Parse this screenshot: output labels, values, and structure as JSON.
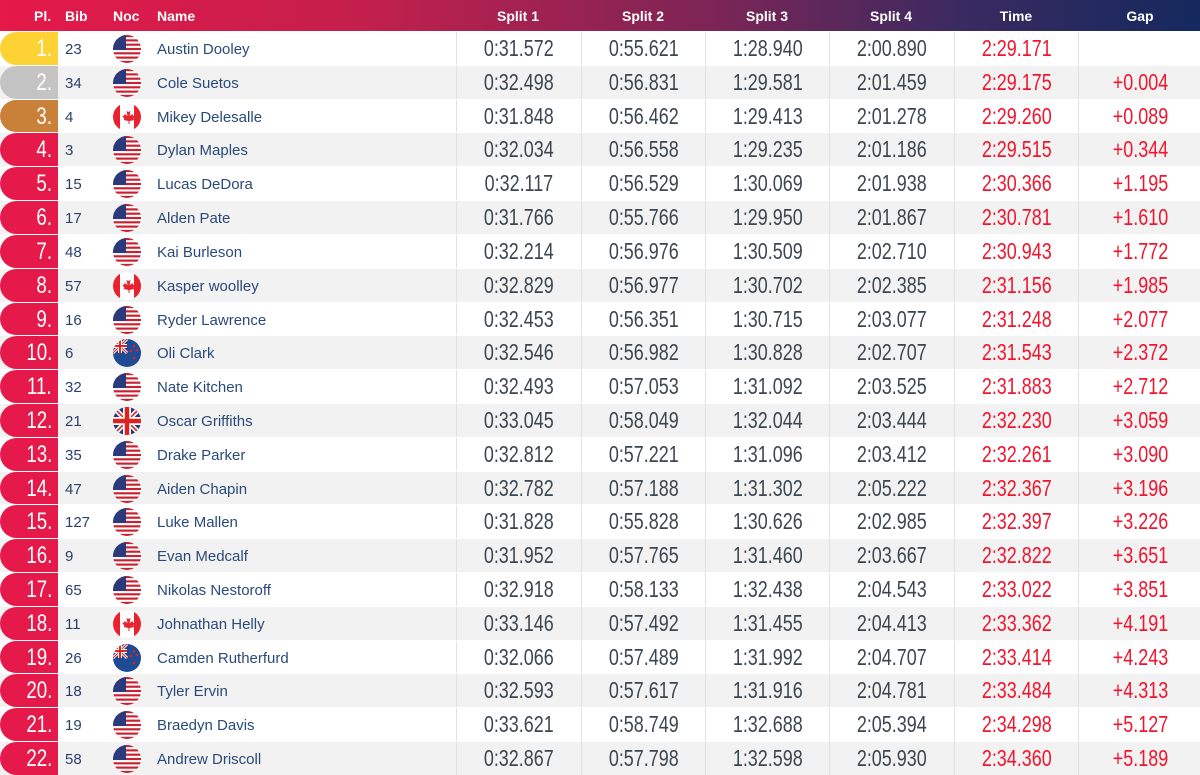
{
  "header": {
    "place": "Pl.",
    "bib": "Bib",
    "noc": "Noc",
    "name": "Name",
    "split1": "Split 1",
    "split2": "Split 2",
    "split3": "Split 3",
    "split4": "Split 4",
    "time": "Time",
    "gap": "Gap"
  },
  "colors": {
    "gold": "#fcd234",
    "silver": "#c4c4c4",
    "bronze": "#c98039",
    "place": "#e5194a",
    "time": "#f0142d"
  },
  "rows": [
    {
      "place": "1.",
      "bib": "23",
      "noc": "USA",
      "name": "Austin Dooley",
      "s1": "0:31.572",
      "s2": "0:55.621",
      "s3": "1:28.940",
      "s4": "2:00.890",
      "time": "2:29.171",
      "gap": ""
    },
    {
      "place": "2.",
      "bib": "34",
      "noc": "USA",
      "name": "Cole Suetos",
      "s1": "0:32.498",
      "s2": "0:56.831",
      "s3": "1:29.581",
      "s4": "2:01.459",
      "time": "2:29.175",
      "gap": "+0.004"
    },
    {
      "place": "3.",
      "bib": "4",
      "noc": "CAN",
      "name": "Mikey Delesalle",
      "s1": "0:31.848",
      "s2": "0:56.462",
      "s3": "1:29.413",
      "s4": "2:01.278",
      "time": "2:29.260",
      "gap": "+0.089"
    },
    {
      "place": "4.",
      "bib": "3",
      "noc": "USA",
      "name": "Dylan Maples",
      "s1": "0:32.034",
      "s2": "0:56.558",
      "s3": "1:29.235",
      "s4": "2:01.186",
      "time": "2:29.515",
      "gap": "+0.344"
    },
    {
      "place": "5.",
      "bib": "15",
      "noc": "USA",
      "name": "Lucas DeDora",
      "s1": "0:32.117",
      "s2": "0:56.529",
      "s3": "1:30.069",
      "s4": "2:01.938",
      "time": "2:30.366",
      "gap": "+1.195"
    },
    {
      "place": "6.",
      "bib": "17",
      "noc": "USA",
      "name": "Alden Pate",
      "s1": "0:31.766",
      "s2": "0:55.766",
      "s3": "1:29.950",
      "s4": "2:01.867",
      "time": "2:30.781",
      "gap": "+1.610"
    },
    {
      "place": "7.",
      "bib": "48",
      "noc": "USA",
      "name": "Kai Burleson",
      "s1": "0:32.214",
      "s2": "0:56.976",
      "s3": "1:30.509",
      "s4": "2:02.710",
      "time": "2:30.943",
      "gap": "+1.772"
    },
    {
      "place": "8.",
      "bib": "57",
      "noc": "CAN",
      "name": "Kasper woolley",
      "s1": "0:32.829",
      "s2": "0:56.977",
      "s3": "1:30.702",
      "s4": "2:02.385",
      "time": "2:31.156",
      "gap": "+1.985"
    },
    {
      "place": "9.",
      "bib": "16",
      "noc": "USA",
      "name": "Ryder Lawrence",
      "s1": "0:32.453",
      "s2": "0:56.351",
      "s3": "1:30.715",
      "s4": "2:03.077",
      "time": "2:31.248",
      "gap": "+2.077"
    },
    {
      "place": "10.",
      "bib": "6",
      "noc": "NZL",
      "name": "Oli Clark",
      "s1": "0:32.546",
      "s2": "0:56.982",
      "s3": "1:30.828",
      "s4": "2:02.707",
      "time": "2:31.543",
      "gap": "+2.372"
    },
    {
      "place": "11.",
      "bib": "32",
      "noc": "USA",
      "name": "Nate Kitchen",
      "s1": "0:32.493",
      "s2": "0:57.053",
      "s3": "1:31.092",
      "s4": "2:03.525",
      "time": "2:31.883",
      "gap": "+2.712"
    },
    {
      "place": "12.",
      "bib": "21",
      "noc": "GBR",
      "name": "Oscar Griffiths",
      "s1": "0:33.045",
      "s2": "0:58.049",
      "s3": "1:32.044",
      "s4": "2:03.444",
      "time": "2:32.230",
      "gap": "+3.059"
    },
    {
      "place": "13.",
      "bib": "35",
      "noc": "USA",
      "name": "Drake Parker",
      "s1": "0:32.812",
      "s2": "0:57.221",
      "s3": "1:31.096",
      "s4": "2:03.412",
      "time": "2:32.261",
      "gap": "+3.090"
    },
    {
      "place": "14.",
      "bib": "47",
      "noc": "USA",
      "name": "Aiden Chapin",
      "s1": "0:32.782",
      "s2": "0:57.188",
      "s3": "1:31.302",
      "s4": "2:05.222",
      "time": "2:32.367",
      "gap": "+3.196"
    },
    {
      "place": "15.",
      "bib": "127",
      "noc": "USA",
      "name": "Luke Mallen",
      "s1": "0:31.828",
      "s2": "0:55.828",
      "s3": "1:30.626",
      "s4": "2:02.985",
      "time": "2:32.397",
      "gap": "+3.226"
    },
    {
      "place": "16.",
      "bib": "9",
      "noc": "USA",
      "name": "Evan Medcalf",
      "s1": "0:31.952",
      "s2": "0:57.765",
      "s3": "1:31.460",
      "s4": "2:03.667",
      "time": "2:32.822",
      "gap": "+3.651"
    },
    {
      "place": "17.",
      "bib": "65",
      "noc": "USA",
      "name": "Nikolas Nestoroff",
      "s1": "0:32.918",
      "s2": "0:58.133",
      "s3": "1:32.438",
      "s4": "2:04.543",
      "time": "2:33.022",
      "gap": "+3.851"
    },
    {
      "place": "18.",
      "bib": "11",
      "noc": "CAN",
      "name": "Johnathan Helly",
      "s1": "0:33.146",
      "s2": "0:57.492",
      "s3": "1:31.455",
      "s4": "2:04.413",
      "time": "2:33.362",
      "gap": "+4.191"
    },
    {
      "place": "19.",
      "bib": "26",
      "noc": "NZL",
      "name": "Camden Rutherfurd",
      "s1": "0:32.066",
      "s2": "0:57.489",
      "s3": "1:31.992",
      "s4": "2:04.707",
      "time": "2:33.414",
      "gap": "+4.243"
    },
    {
      "place": "20.",
      "bib": "18",
      "noc": "USA",
      "name": "Tyler Ervin",
      "s1": "0:32.593",
      "s2": "0:57.617",
      "s3": "1:31.916",
      "s4": "2:04.781",
      "time": "2:33.484",
      "gap": "+4.313"
    },
    {
      "place": "21.",
      "bib": "19",
      "noc": "USA",
      "name": "Braedyn Davis",
      "s1": "0:33.621",
      "s2": "0:58.749",
      "s3": "1:32.688",
      "s4": "2:05.394",
      "time": "2:34.298",
      "gap": "+5.127"
    },
    {
      "place": "22.",
      "bib": "58",
      "noc": "USA",
      "name": "Andrew Driscoll",
      "s1": "0:32.867",
      "s2": "0:57.798",
      "s3": "1:32.598",
      "s4": "2:05.930",
      "time": "2:34.360",
      "gap": "+5.189"
    }
  ]
}
